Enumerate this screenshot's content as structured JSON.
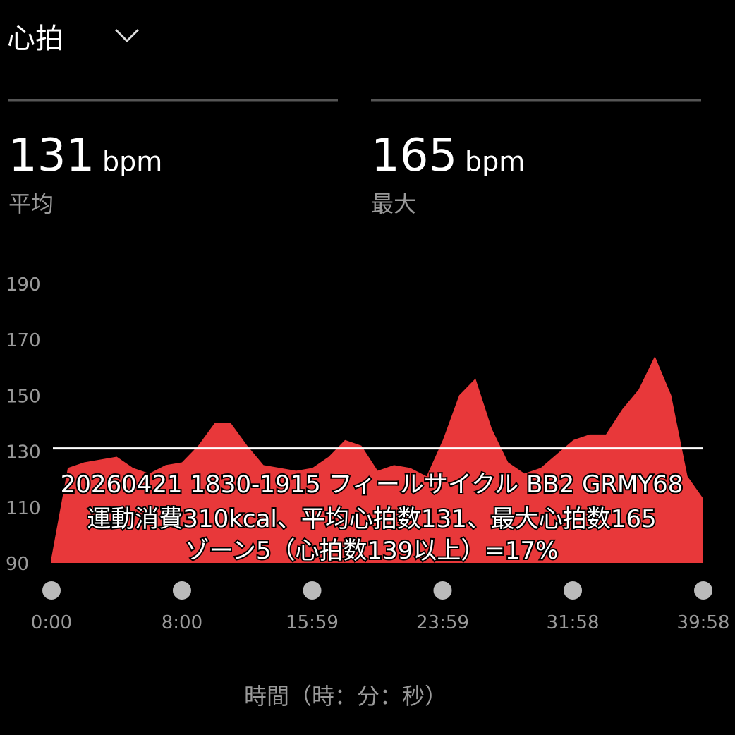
{
  "header": {
    "title": "心拍"
  },
  "stats": [
    {
      "value": 131,
      "unit": "bpm",
      "label": "平均"
    },
    {
      "value": 165,
      "unit": "bpm",
      "label": "最大"
    }
  ],
  "chart_data": {
    "type": "area",
    "color": "#e8383a",
    "x": [
      0,
      60,
      120,
      180,
      240,
      300,
      360,
      420,
      480,
      540,
      600,
      660,
      720,
      780,
      840,
      900,
      960,
      1020,
      1080,
      1140,
      1200,
      1260,
      1320,
      1380,
      1440,
      1500,
      1560,
      1620,
      1680,
      1740,
      1800,
      1860,
      1920,
      1980,
      2040,
      2100,
      2160,
      2220,
      2280,
      2340,
      2398
    ],
    "values": [
      92,
      124,
      126,
      127,
      128,
      124,
      122,
      125,
      126,
      132,
      140,
      140,
      132,
      125,
      124,
      123,
      124,
      128,
      134,
      132,
      123,
      125,
      124,
      121,
      134,
      150,
      156,
      138,
      126,
      122,
      124,
      129,
      134,
      136,
      136,
      145,
      152,
      164,
      150,
      121,
      113
    ],
    "xlim": [
      0,
      2398
    ],
    "xticks": [
      {
        "value": 0,
        "label": "0:00"
      },
      {
        "value": 480,
        "label": "8:00"
      },
      {
        "value": 959,
        "label": "15:59"
      },
      {
        "value": 1439,
        "label": "23:59"
      },
      {
        "value": 1918,
        "label": "31:58"
      },
      {
        "value": 2398,
        "label": "39:58"
      }
    ],
    "ylim": [
      90,
      190
    ],
    "yticks": [
      90,
      110,
      130,
      150,
      170,
      190
    ],
    "xlabel": "時間（時：分：秒）"
  },
  "caption": {
    "lines": [
      "20260421 1830-1915 フィールサイクル BB2 GRMY68",
      "運動消費310kcal、平均心拍数131、最大心拍数165",
      "ゾーン5（心拍数139以上）=17%"
    ]
  }
}
